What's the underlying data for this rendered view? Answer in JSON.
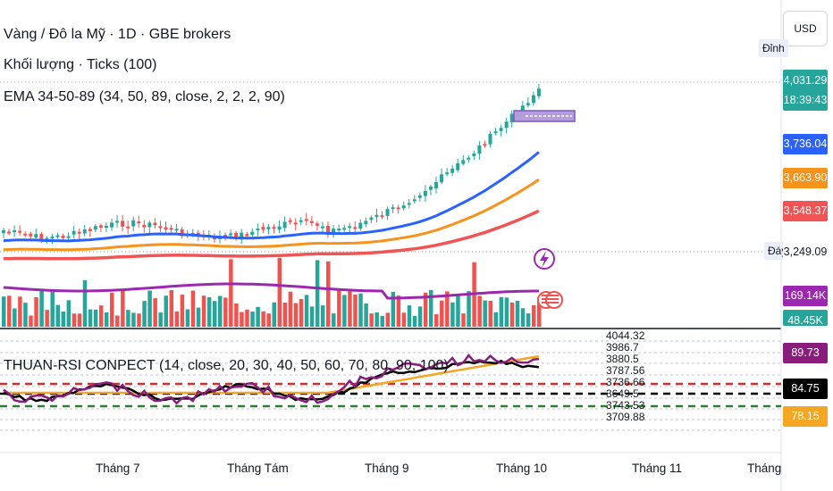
{
  "header": {
    "title": "Vàng / Đô la Mỹ · 1D · GBE brokers",
    "volume_label": "Khối lượng · Ticks (100)",
    "ema_label": "EMA 34-50-89 (34, 50, 89, close, 2, 2, 2, 90)"
  },
  "currency_button": "USD",
  "tags": {
    "high": "Đỉnh",
    "low": "Đáy"
  },
  "price_labels": {
    "last_price": "4,031.29",
    "countdown": "18:39:43",
    "ema34": "3,736.04",
    "ema50": "3,663.90",
    "ema89": "3,548.37",
    "low_value": "3,249.09",
    "volume": "169.14K",
    "volume_partial": "48.45K"
  },
  "rsi_panel": {
    "label": "THUAN-RSI CONPECT (14, close, 20, 30, 40, 50, 60, 70, 80, 90, 100)",
    "axis_values": [
      "4044.32",
      "3986.7",
      "3880.5",
      "3787.56",
      "3736.66",
      "3649.5",
      "3743.53",
      "3709.88"
    ],
    "rsi_labels": {
      "purple": "89.73",
      "black": "84.75",
      "orange": "78.15"
    }
  },
  "x_axis": [
    "Tháng 7",
    "Tháng Tám",
    "Tháng 9",
    "Tháng 10",
    "Tháng 11",
    "Tháng Mười Hai"
  ],
  "colors": {
    "bull": "#26a69a",
    "bear": "#ef5350",
    "ema34": "#2962ff",
    "ema50": "#f7931a",
    "ema89": "#f05454",
    "volume_ma": "#9c27b0",
    "rsi_purple": "#8a1c7c",
    "rsi_black": "#000000",
    "rsi_orange": "#f5a623"
  },
  "icons": [
    "lightning-event-icon",
    "us-flag-event-icon"
  ]
}
